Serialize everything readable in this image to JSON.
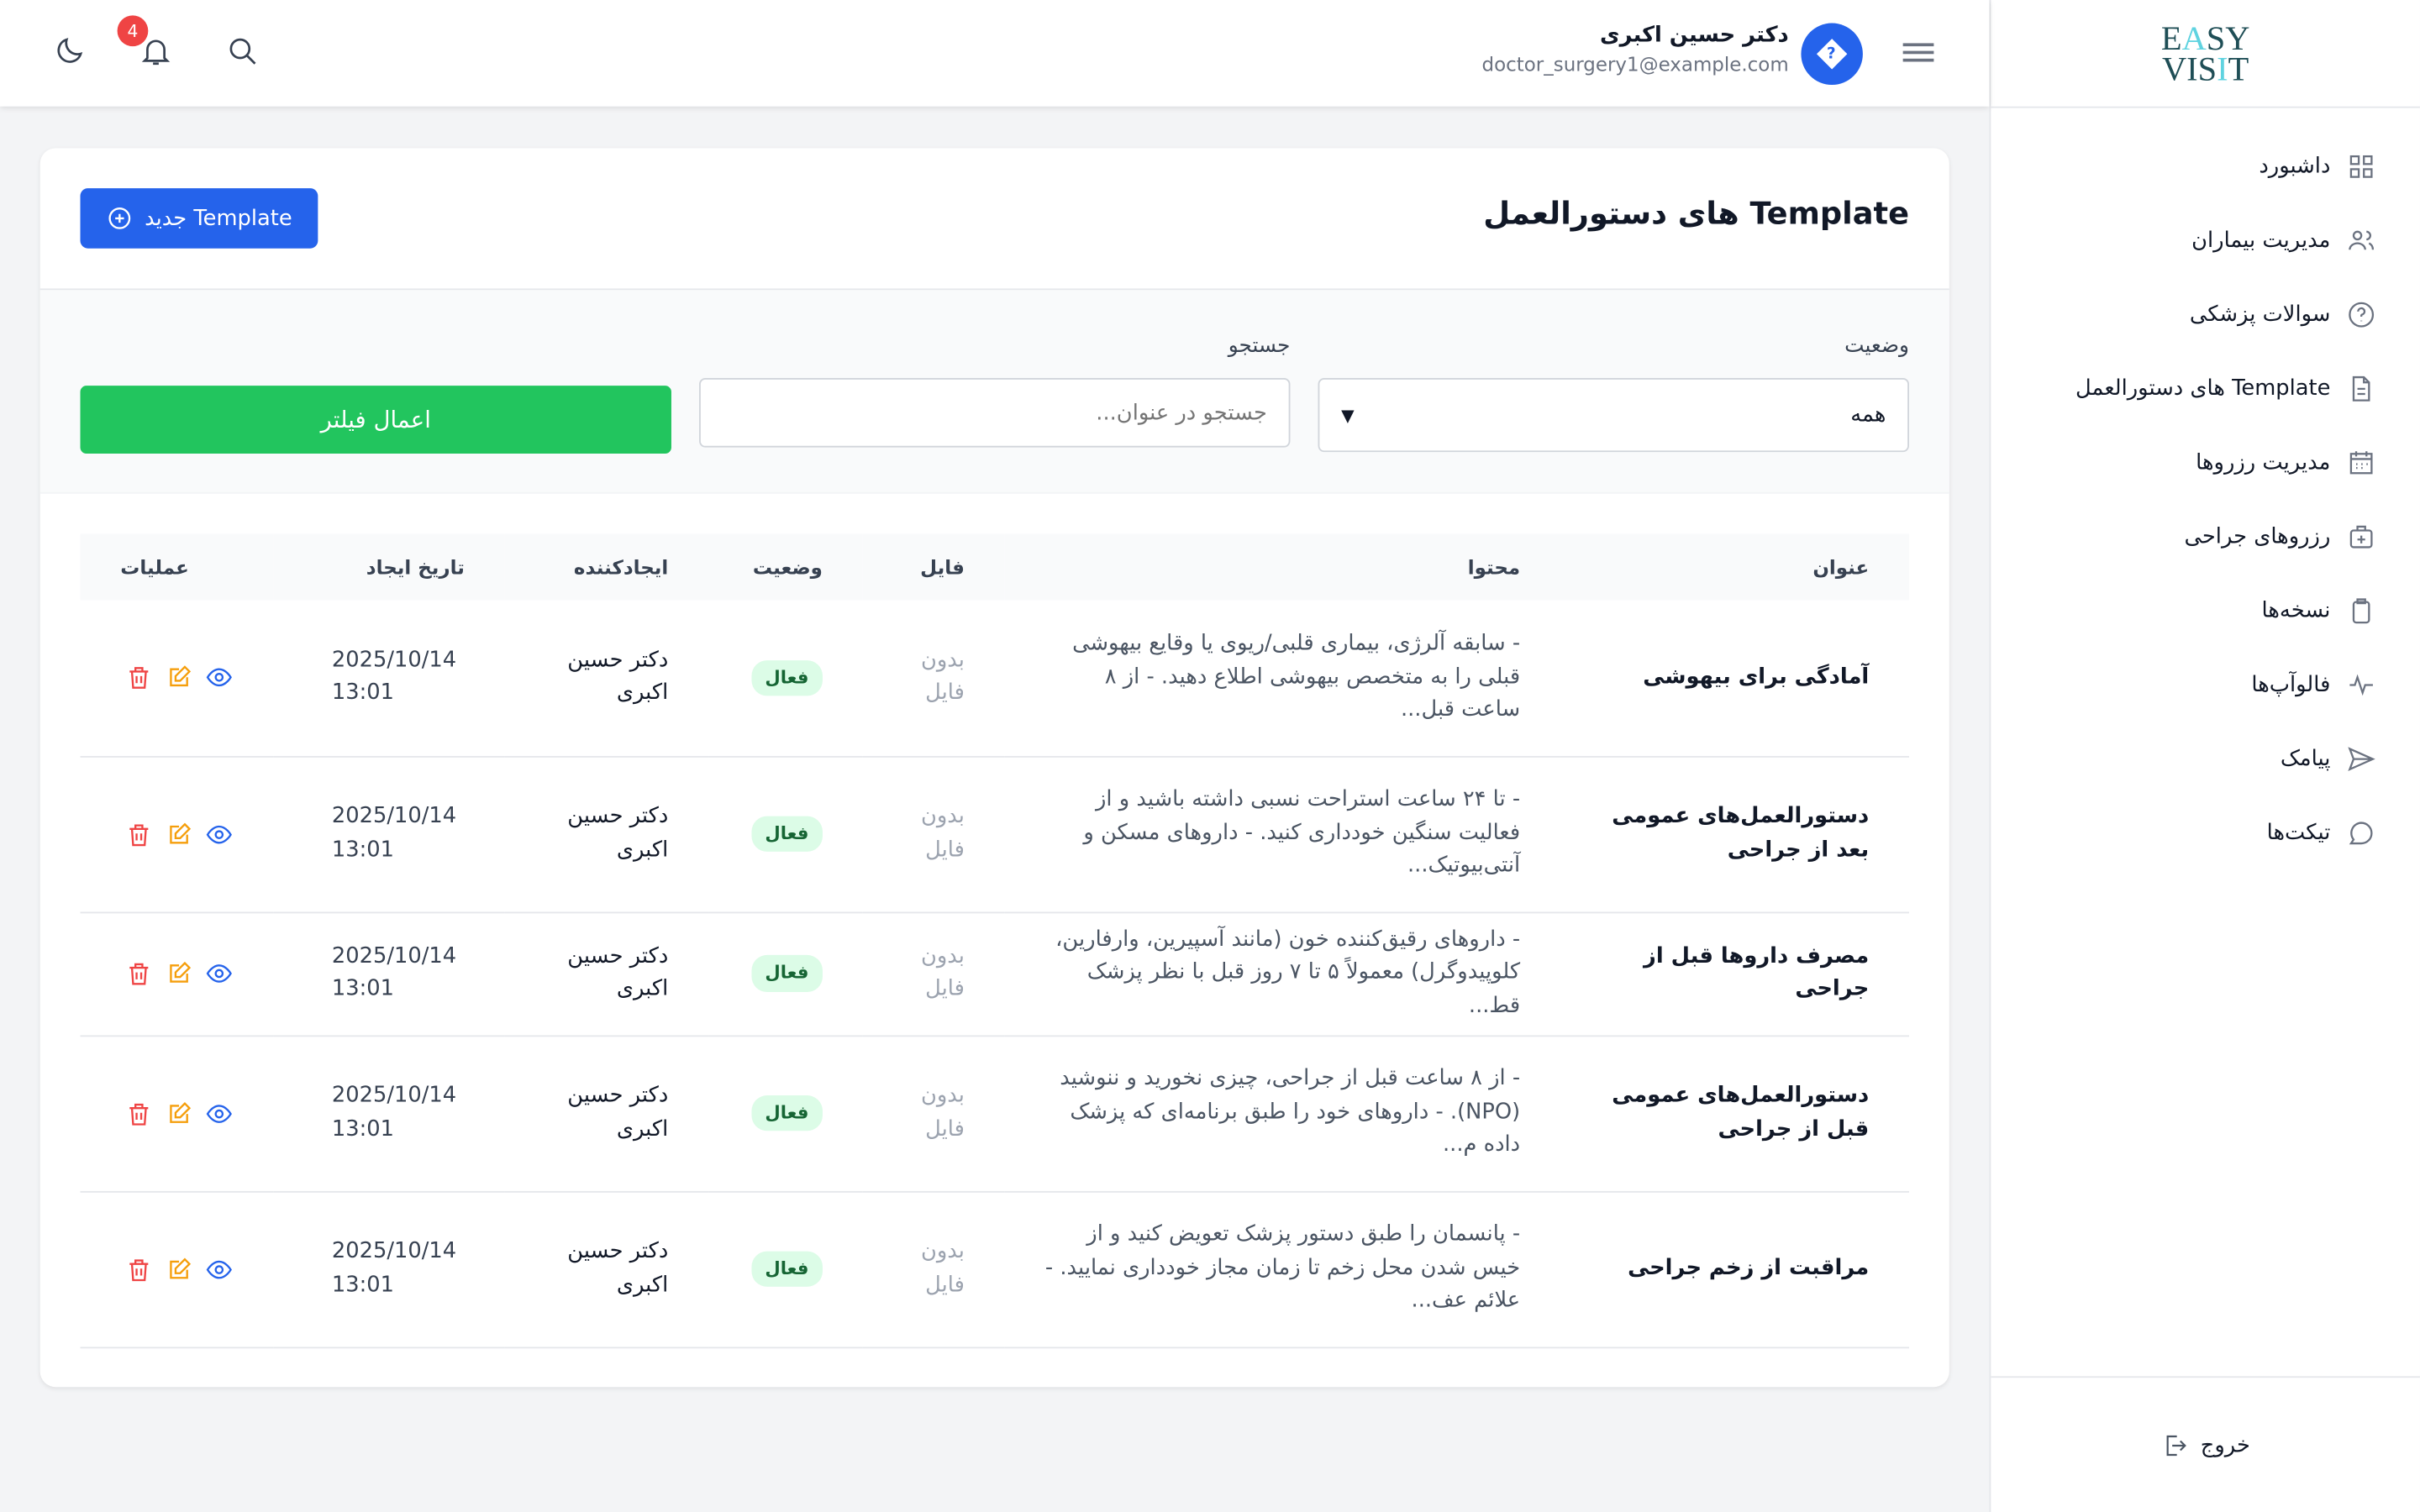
{
  "logo": {
    "line1": "EASY",
    "line2": "VISIT"
  },
  "sidebar": {
    "items": [
      {
        "label": "داشبورد",
        "icon": "grid-icon"
      },
      {
        "label": "مدیریت بیماران",
        "icon": "users-icon"
      },
      {
        "label": "سوالات پزشکی",
        "icon": "question-icon"
      },
      {
        "label": "Template های دستورالعمل",
        "icon": "document-icon"
      },
      {
        "label": "مدیریت رزروها",
        "icon": "calendar-icon"
      },
      {
        "label": "رزروهای جراحی",
        "icon": "medical-bag-icon"
      },
      {
        "label": "نسخه‌ها",
        "icon": "clipboard-icon"
      },
      {
        "label": "فالوآپ‌ها",
        "icon": "pulse-icon"
      },
      {
        "label": "پیامک",
        "icon": "send-icon"
      },
      {
        "label": "تیکت‌ها",
        "icon": "chat-icon"
      }
    ],
    "logout": "خروج"
  },
  "header": {
    "user_name": "دکتر حسین اکبری",
    "user_email": "doctor_surgery1@example.com",
    "notifications": "4",
    "avatar_glyph": "?"
  },
  "page": {
    "title": "Template های دستورالعمل",
    "new_button": "Template جدید"
  },
  "filters": {
    "status_label": "وضعیت",
    "status_value": "همه",
    "search_label": "جستجو",
    "search_placeholder": "جستجو در عنوان...",
    "apply": "اعمال فیلتر"
  },
  "table": {
    "headers": [
      "عنوان",
      "محتوا",
      "فایل",
      "وضعیت",
      "ایجادکننده",
      "تاریخ ایجاد",
      "عملیات"
    ],
    "rows": [
      {
        "title": "آمادگی برای بیهوشی",
        "content": "- سابقه آلرژی، بیماری قلبی/ریوی یا وقایع بیهوشی قبلی را به متخصص بیهوشی اطلاع دهید. - از ۸ ساعت قبل...",
        "file": "بدون فایل",
        "status": "فعال",
        "creator": "دکتر حسین اکبری",
        "date": "2025/10/14 13:01"
      },
      {
        "title": "دستورالعمل‌های عمومی بعد از جراحی",
        "content": "- تا ۲۴ ساعت استراحت نسبی داشته باشید و از فعالیت سنگین خودداری کنید. - داروهای مسکن و آنتی‌بیوتیک...",
        "file": "بدون فایل",
        "status": "فعال",
        "creator": "دکتر حسین اکبری",
        "date": "2025/10/14 13:01"
      },
      {
        "title": "مصرف داروها قبل از جراحی",
        "content": "- داروهای رقیق‌کننده خون (مانند آسپیرین، وارفارین، کلوپیدوگرل) معمولاً ۵ تا ۷ روز قبل با نظر پزشک قط...",
        "file": "بدون فایل",
        "status": "فعال",
        "creator": "دکتر حسین اکبری",
        "date": "2025/10/14 13:01"
      },
      {
        "title": "دستورالعمل‌های عمومی قبل از جراحی",
        "content": "- از ۸ ساعت قبل از جراحی، چیزی نخورید و ننوشید (NPO). - داروهای خود را طبق برنامه‌ای که پزشک داده م...",
        "file": "بدون فایل",
        "status": "فعال",
        "creator": "دکتر حسین اکبری",
        "date": "2025/10/14 13:01"
      },
      {
        "title": "مراقبت از زخم جراحی",
        "content": "- پانسمان را طبق دستور پزشک تعویض کنید و از خیس شدن محل زخم تا زمان مجاز خودداری نمایید. - علائم عف...",
        "file": "بدون فایل",
        "status": "فعال",
        "creator": "دکتر حسین اکبری",
        "date": "2025/10/14 13:01"
      }
    ]
  },
  "colors": {
    "primary": "#2563eb",
    "success": "#22c55e",
    "danger": "#ef4444",
    "edit": "#f59e0b"
  }
}
